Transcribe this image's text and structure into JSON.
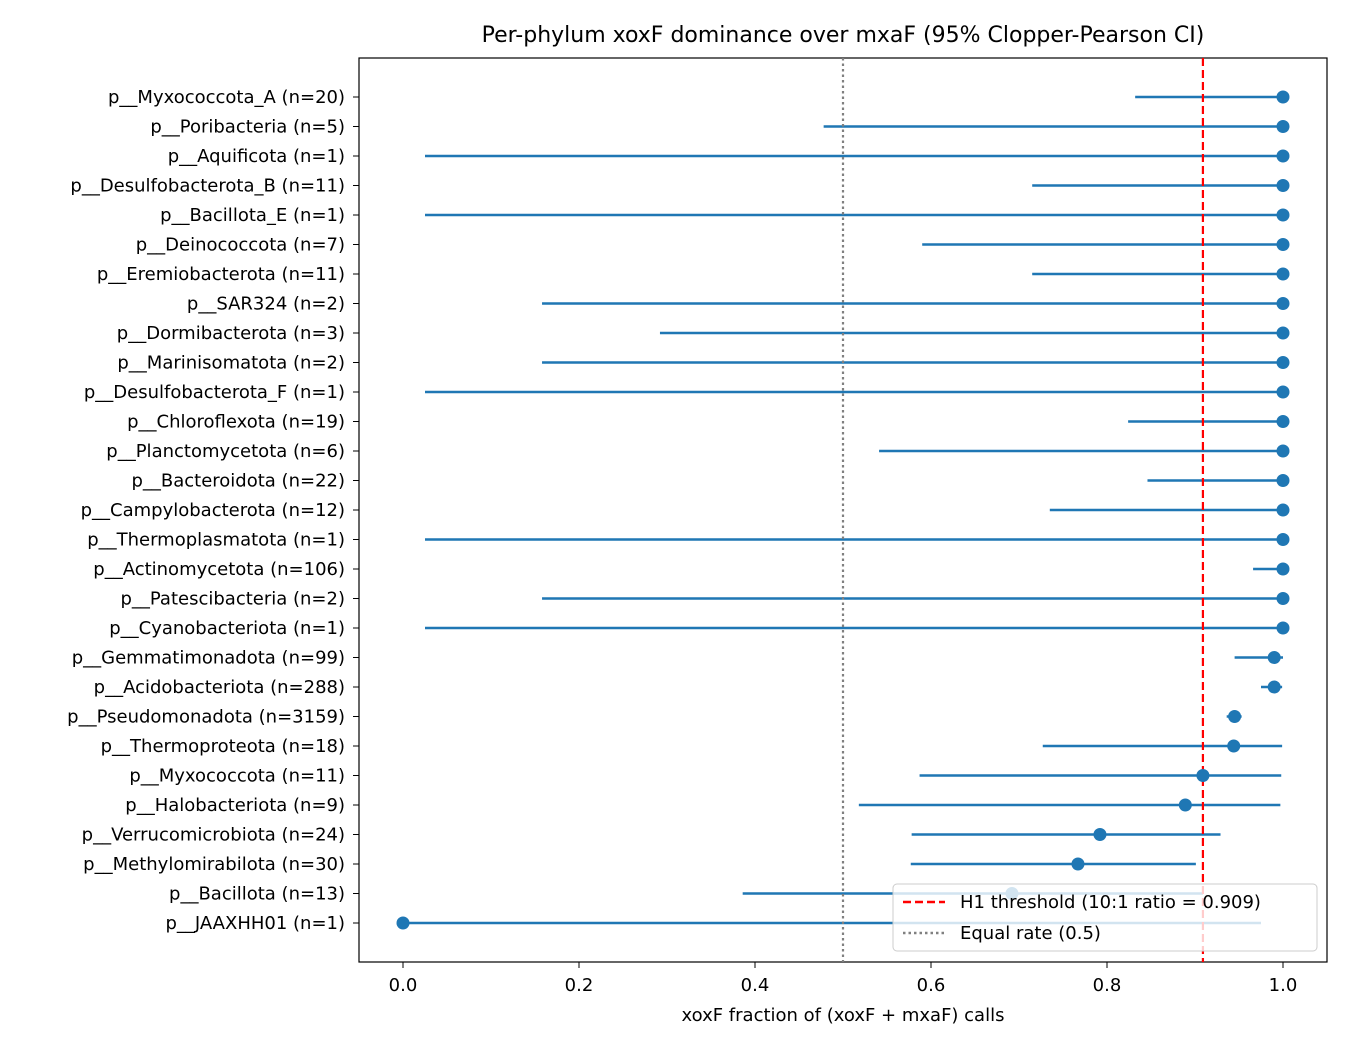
{
  "chart_data": {
    "type": "scatter",
    "title": "Per-phylum xoxF dominance over mxaF (95% Clopper-Pearson CI)",
    "xlabel": "xoxF fraction of (xoxF + mxaF) calls",
    "ylabel": "",
    "xlim": [
      -0.05,
      1.05
    ],
    "xticks": [
      "0.0",
      "0.2",
      "0.4",
      "0.6",
      "0.8",
      "1.0"
    ],
    "grid": false,
    "legend_position": "lower-right",
    "colors": {
      "series": "#1f77b4",
      "threshold": "#ff0000",
      "equal": "#808080"
    },
    "reference_lines": [
      {
        "name": "H1 threshold (10:1 ratio = 0.909)",
        "x": 0.909,
        "style": "dashed",
        "color": "#ff0000"
      },
      {
        "name": "Equal rate (0.5)",
        "x": 0.5,
        "style": "dotted",
        "color": "#808080"
      }
    ],
    "categories": [
      "p__Myxococcota_A (n=20)",
      "p__Poribacteria (n=5)",
      "p__Aquificota (n=1)",
      "p__Desulfobacterota_B (n=11)",
      "p__Bacillota_E (n=1)",
      "p__Deinococcota (n=7)",
      "p__Eremiobacterota (n=11)",
      "p__SAR324 (n=2)",
      "p__Dormibacterota (n=3)",
      "p__Marinisomatota (n=2)",
      "p__Desulfobacterota_F (n=1)",
      "p__Chloroflexota (n=19)",
      "p__Planctomycetota (n=6)",
      "p__Bacteroidota (n=22)",
      "p__Campylobacterota (n=12)",
      "p__Thermoplasmatota (n=1)",
      "p__Actinomycetota (n=106)",
      "p__Patescibacteria (n=2)",
      "p__Cyanobacteriota (n=1)",
      "p__Gemmatimonadota (n=99)",
      "p__Acidobacteriota (n=288)",
      "p__Pseudomonadota (n=3159)",
      "p__Thermoproteota (n=18)",
      "p__Myxococcota (n=11)",
      "p__Halobacteriota (n=9)",
      "p__Verrucomicrobiota (n=24)",
      "p__Methylomirabilota (n=30)",
      "p__Bacillota (n=13)",
      "p__JAAXHH01 (n=1)"
    ],
    "points": [
      1.0,
      1.0,
      1.0,
      1.0,
      1.0,
      1.0,
      1.0,
      1.0,
      1.0,
      1.0,
      1.0,
      1.0,
      1.0,
      1.0,
      1.0,
      1.0,
      1.0,
      1.0,
      1.0,
      0.99,
      0.99,
      0.945,
      0.944,
      0.909,
      0.889,
      0.792,
      0.767,
      0.692,
      0.0
    ],
    "ci_low": [
      0.832,
      0.478,
      0.025,
      0.715,
      0.025,
      0.59,
      0.715,
      0.158,
      0.292,
      0.158,
      0.025,
      0.824,
      0.541,
      0.846,
      0.735,
      0.025,
      0.966,
      0.158,
      0.025,
      0.945,
      0.975,
      0.936,
      0.727,
      0.587,
      0.518,
      0.578,
      0.577,
      0.386,
      0.0
    ],
    "ci_high": [
      1.0,
      1.0,
      1.0,
      1.0,
      1.0,
      1.0,
      1.0,
      1.0,
      1.0,
      1.0,
      1.0,
      1.0,
      1.0,
      1.0,
      1.0,
      1.0,
      1.0,
      1.0,
      1.0,
      1.0,
      0.999,
      0.953,
      0.999,
      0.998,
      0.997,
      0.929,
      0.901,
      0.909,
      0.975
    ]
  }
}
